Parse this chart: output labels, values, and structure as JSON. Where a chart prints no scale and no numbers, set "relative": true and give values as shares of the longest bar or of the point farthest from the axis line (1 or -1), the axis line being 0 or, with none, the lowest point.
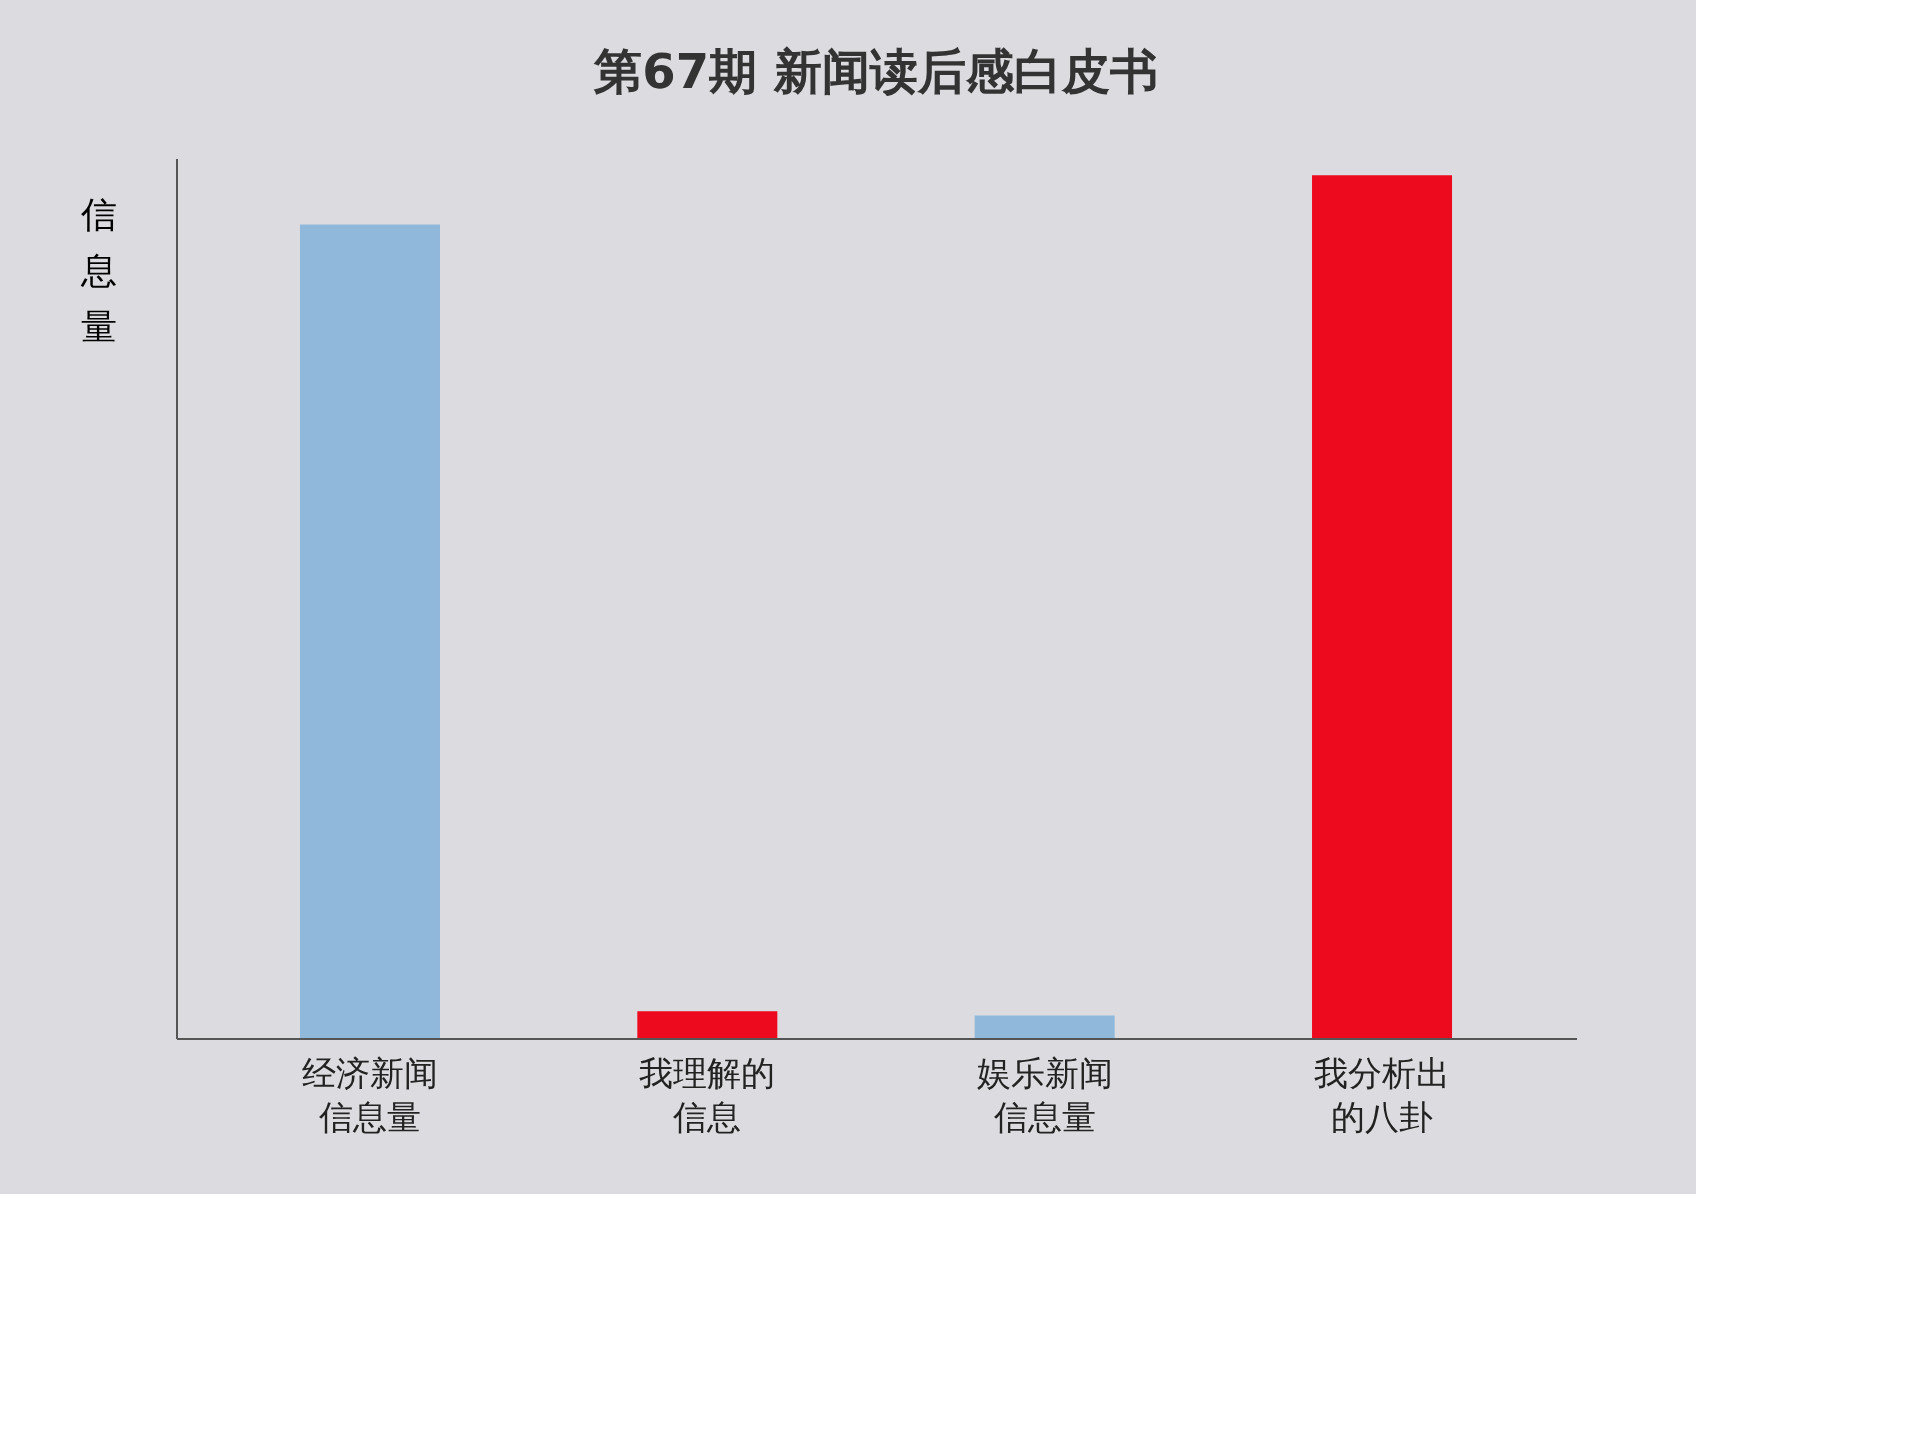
{
  "chart_data": {
    "type": "bar",
    "title": "第67期 新闻读后感白皮书",
    "ylabel": "信息量",
    "relative": true,
    "categories": [
      "经济新闻信息量",
      "我理解的信息",
      "娱乐新闻信息量",
      "我分析出的八卦"
    ],
    "values": [
      0.943,
      0.031,
      0.026,
      1
    ],
    "colors": [
      "#8fb8da",
      "#ee0a1e",
      "#8fb8da",
      "#ee0a1e"
    ],
    "legend": false
  }
}
